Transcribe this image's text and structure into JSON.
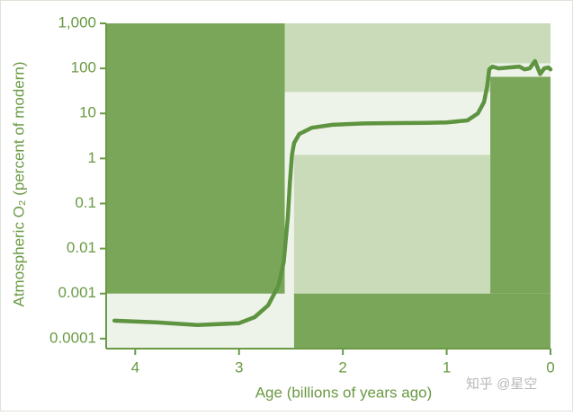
{
  "chart_data": {
    "type": "line",
    "ylabel": "Atmospheric O₂ (percent of modern)",
    "xlabel": "Age (billions of years ago)",
    "log_y": true,
    "xlim": [
      4.28,
      0
    ],
    "ylim": [
      6e-05,
      1000
    ],
    "xticks": [
      4,
      3,
      2,
      1,
      0
    ],
    "yticks": [
      {
        "value": 1000,
        "label": "1,000"
      },
      100,
      10,
      1,
      0.1,
      0.01,
      0.001,
      0.0001
    ],
    "regions": [
      {
        "x": [
          4.28,
          2.56
        ],
        "y": [
          0.001,
          1000
        ],
        "color": "#7aa65a"
      },
      {
        "x": [
          2.56,
          0.58
        ],
        "y": [
          30,
          1000
        ],
        "color": "#c9dbb9"
      },
      {
        "x": [
          2.47,
          0.58
        ],
        "y": [
          0.001,
          1.2
        ],
        "color": "#c9dbb9"
      },
      {
        "x": [
          2.47,
          0
        ],
        "y": [
          6e-05,
          0.001
        ],
        "color": "#7aa65a"
      },
      {
        "x": [
          0.58,
          0
        ],
        "y": [
          0.001,
          65
        ],
        "color": "#7aa65a"
      },
      {
        "x": [
          0.58,
          0
        ],
        "y": [
          130,
          1000
        ],
        "color": "#c9dbb9"
      }
    ],
    "x": [
      4.2,
      3.8,
      3.4,
      3.0,
      2.85,
      2.72,
      2.62,
      2.57,
      2.53,
      2.51,
      2.49,
      2.47,
      2.42,
      2.3,
      2.1,
      1.8,
      1.5,
      1.2,
      1.0,
      0.8,
      0.7,
      0.64,
      0.61,
      0.59,
      0.56,
      0.5,
      0.4,
      0.3,
      0.25,
      0.2,
      0.15,
      0.1,
      0.06,
      0.02,
      0
    ],
    "values": [
      0.00025,
      0.00023,
      0.0002,
      0.00022,
      0.0003,
      0.00055,
      0.0015,
      0.005,
      0.05,
      0.3,
      1.2,
      2.2,
      3.5,
      4.8,
      5.6,
      6,
      6.1,
      6.2,
      6.3,
      7,
      10,
      18,
      40,
      95,
      110,
      100,
      105,
      110,
      95,
      100,
      145,
      75,
      100,
      105,
      95
    ],
    "color": "#5e9440",
    "watermark": "知乎 @星空"
  }
}
